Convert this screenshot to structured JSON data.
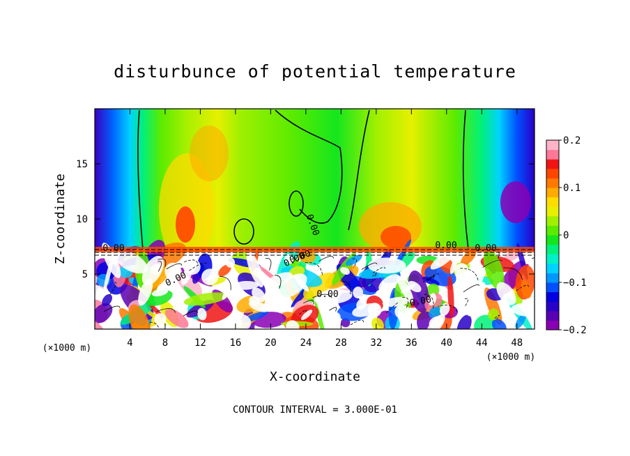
{
  "chart_data": {
    "type": "heatmap",
    "title": "disturbunce of potential temperature",
    "xlabel": "X-coordinate",
    "ylabel": "Z-coordinate",
    "x_unit_left": "(×1000 m)",
    "x_unit_right": "(×1000 m)",
    "xlim": [
      0,
      50
    ],
    "ylim": [
      0,
      20
    ],
    "x_ticks": [
      4,
      8,
      12,
      16,
      20,
      24,
      28,
      32,
      36,
      40,
      44,
      48
    ],
    "y_ticks": [
      5,
      10,
      15
    ],
    "colorbar": {
      "range": [
        -0.2,
        0.2
      ],
      "ticks": [
        {
          "value": 0.2,
          "label": "0.2"
        },
        {
          "value": 0.1,
          "label": "0.1"
        },
        {
          "value": 0,
          "label": "0"
        },
        {
          "value": -0.1,
          "label": "−0.1"
        },
        {
          "value": -0.2,
          "label": "−0.2"
        }
      ],
      "colors": [
        "#8a00b4",
        "#5a00b4",
        "#2800c8",
        "#0000e0",
        "#0050ff",
        "#0098ff",
        "#00d2ff",
        "#00f0c8",
        "#00f07a",
        "#14e61e",
        "#5aeb00",
        "#a0f000",
        "#e6f000",
        "#ffdc00",
        "#ffaa00",
        "#ff7800",
        "#ff4600",
        "#f01414",
        "#ff7896",
        "#ffb4c8"
      ]
    },
    "contour_labels": [
      "0.00",
      "0.00",
      "0.00",
      "0.00",
      "0.00",
      "0.00",
      "0.00",
      "0.00",
      "0.00"
    ],
    "footer": "CONTOUR INTERVAL = 3.000E-01",
    "field_description_regions": {
      "upper_edges_value": -0.2,
      "upper_center_value": 0.0,
      "upper_warm_bands_value": 0.08,
      "lower_turbulent_range": [
        -0.2,
        0.2
      ]
    }
  }
}
